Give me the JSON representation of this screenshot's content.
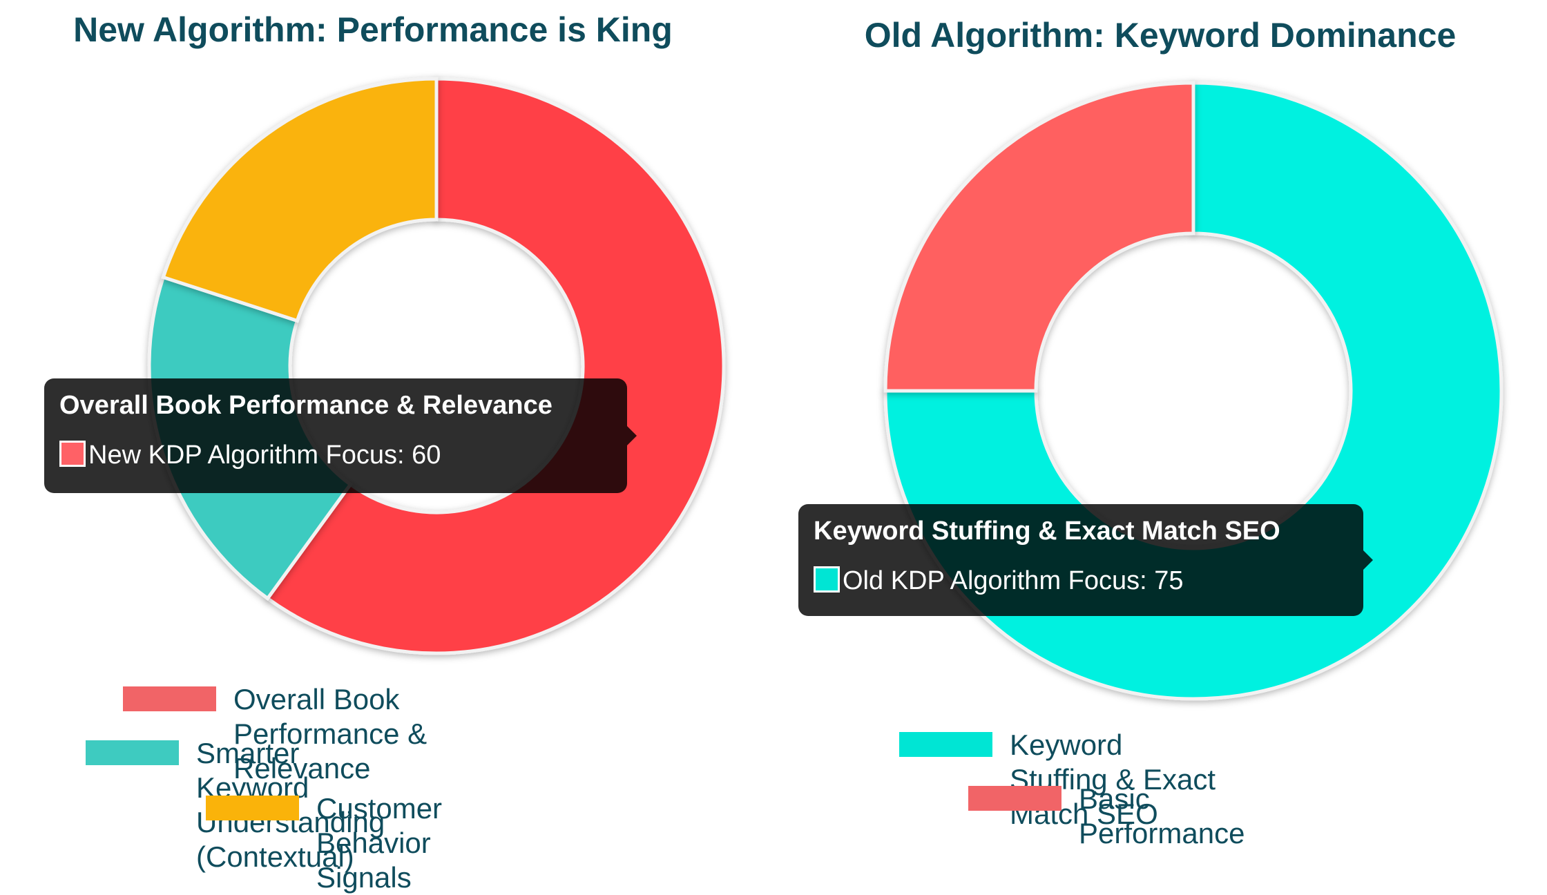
{
  "colors": {
    "title": "#0f4c5c",
    "legend_text": "#0f4c5c",
    "red": "#ff4046",
    "teal": "#3ecbc0",
    "amber": "#fab30a",
    "coral": "#ff6161",
    "cyan": "#00f1e0",
    "tooltip_bg": "rgba(0,0,0,0.82)"
  },
  "chart_data": [
    {
      "type": "donut",
      "title": "New Algorithm: Performance is King",
      "series": [
        {
          "name": "New KDP Algorithm Focus",
          "values": [
            60,
            20,
            20
          ]
        }
      ],
      "categories": [
        "Overall Book Performance & Relevance",
        "Smarter Keyword Understanding (Contextual)",
        "Customer Behavior Signals"
      ],
      "colors": [
        "#ff4046",
        "#3ecbc0",
        "#fab30a"
      ],
      "legend_colors": [
        "#f16467",
        "#3ecbc0",
        "#fab30a"
      ],
      "tooltip": {
        "title": "Overall Book Performance & Relevance",
        "label": "New KDP Algorithm Focus: 60",
        "swatch_color": "#ff6166"
      }
    },
    {
      "type": "donut",
      "title": "Old Algorithm: Keyword Dominance",
      "series": [
        {
          "name": "Old KDP Algorithm Focus",
          "values": [
            75,
            25
          ]
        }
      ],
      "categories": [
        "Keyword Stuffing & Exact Match SEO",
        "Basic Performance"
      ],
      "colors": [
        "#00f1e0",
        "#ff6161"
      ],
      "legend_colors": [
        "#00e5d4",
        "#f16467"
      ],
      "tooltip": {
        "title": "Keyword Stuffing & Exact Match SEO",
        "label": "Old KDP Algorithm Focus: 75",
        "swatch_color": "#00e5d4"
      }
    }
  ]
}
